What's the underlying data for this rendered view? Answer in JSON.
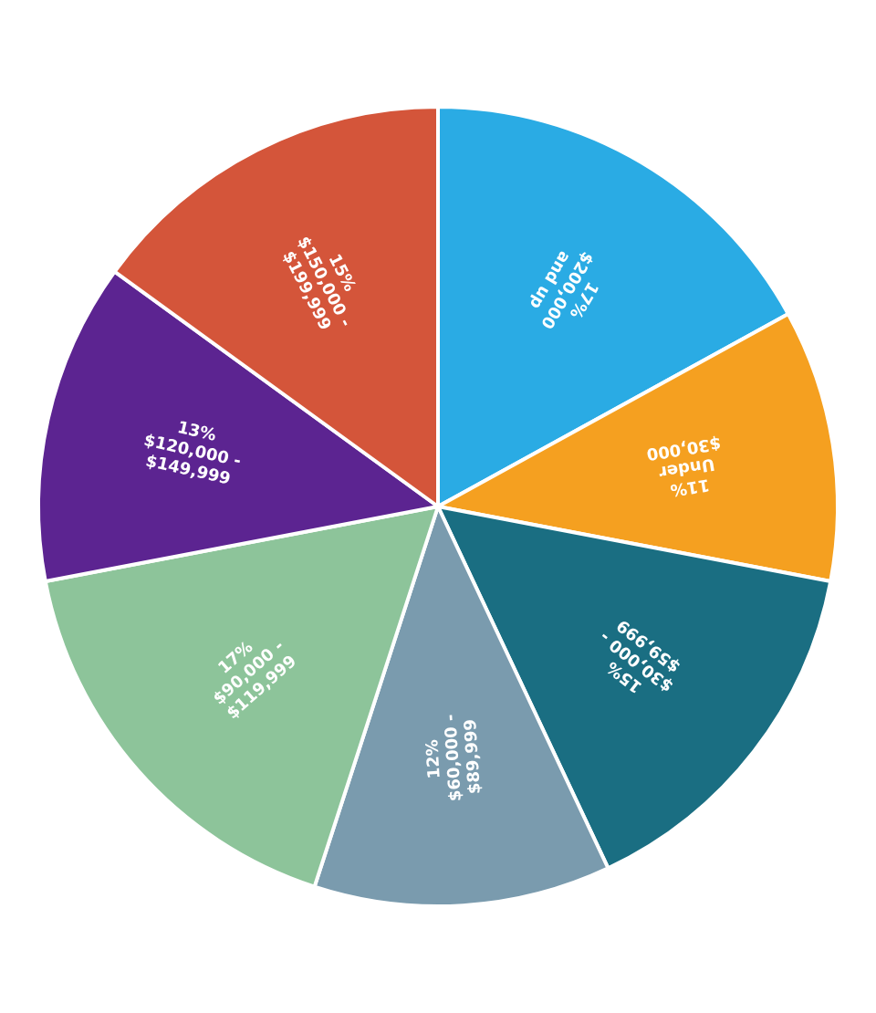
{
  "chart_data": {
    "type": "pie",
    "categories": [
      "$200,000\nand up",
      "Under\n$30,000",
      "$30,000 -\n$59,999",
      "$60,000 -\n$89,999",
      "$90,000 -\n$119,999",
      "$120,000 -\n$149,999",
      "$150,000 -\n$199,999"
    ],
    "values": [
      17,
      11,
      15,
      12,
      17,
      13,
      15
    ],
    "value_labels": [
      "17%",
      "11%",
      "15%",
      "12%",
      "17%",
      "13%",
      "15%"
    ],
    "colors": [
      "#2AABE4",
      "#F5A020",
      "#1A6E82",
      "#7A9BAE",
      "#8DC49A",
      "#5C2491",
      "#D4553A"
    ],
    "data_labels": true,
    "legend": false
  }
}
